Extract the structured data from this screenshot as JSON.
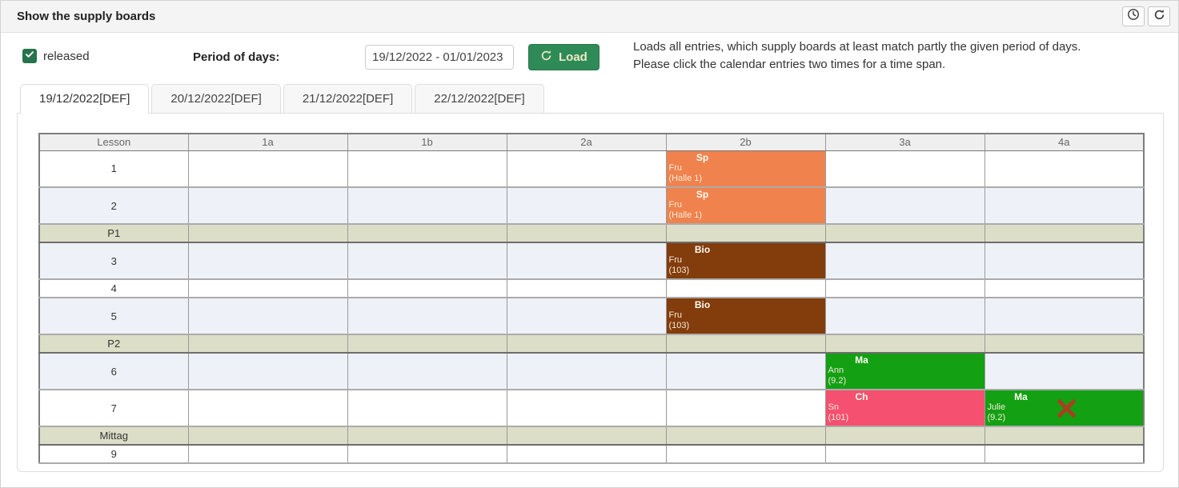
{
  "window": {
    "title": "Show the supply boards"
  },
  "titlebar_icons": [
    "clock-icon",
    "refresh-icon"
  ],
  "controls": {
    "released_label": "released",
    "released_checked": true,
    "period_label": "Period of days:",
    "period_value": "19/12/2022 - 01/01/2023",
    "load_label": "Load",
    "help_line1": "Loads all entries, which supply boards at least match partly the given period of days.",
    "help_line2": "Please click the calendar entries two times for a time span."
  },
  "tabs": [
    {
      "label": "19/12/2022[DEF]",
      "active": true
    },
    {
      "label": "20/12/2022[DEF]",
      "active": false
    },
    {
      "label": "21/12/2022[DEF]",
      "active": false
    },
    {
      "label": "22/12/2022[DEF]",
      "active": false
    }
  ],
  "board": {
    "columns": [
      "Lesson",
      "1a",
      "1b",
      "2a",
      "2b",
      "3a",
      "4a"
    ],
    "rows": [
      {
        "label": "1",
        "kind": "lesson",
        "tall": true,
        "shade": "white",
        "entries": {
          "2b": {
            "subject": "Sp",
            "teacher": "Fru",
            "room": "(Halle 1)",
            "color": "orange",
            "cancelled": false
          }
        }
      },
      {
        "label": "2",
        "kind": "lesson",
        "tall": true,
        "shade": "blue",
        "entries": {
          "2b": {
            "subject": "Sp",
            "teacher": "Fru",
            "room": "(Halle 1)",
            "color": "orange",
            "cancelled": false
          }
        }
      },
      {
        "label": "P1",
        "kind": "band",
        "tall": false,
        "shade": "band",
        "entries": {}
      },
      {
        "label": "3",
        "kind": "lesson",
        "tall": true,
        "shade": "blue",
        "entries": {
          "2b": {
            "subject": "Bio",
            "teacher": "Fru",
            "room": "(103)",
            "color": "brown",
            "cancelled": false
          }
        }
      },
      {
        "label": "4",
        "kind": "lesson",
        "tall": false,
        "shade": "white",
        "entries": {}
      },
      {
        "label": "5",
        "kind": "lesson",
        "tall": true,
        "shade": "blue",
        "entries": {
          "2b": {
            "subject": "Bio",
            "teacher": "Fru",
            "room": "(103)",
            "color": "brown",
            "cancelled": false
          }
        }
      },
      {
        "label": "P2",
        "kind": "band",
        "tall": false,
        "shade": "band",
        "entries": {}
      },
      {
        "label": "6",
        "kind": "lesson",
        "tall": true,
        "shade": "blue",
        "entries": {
          "3a": {
            "subject": "Ma",
            "teacher": "Ann",
            "room": "(9.2)",
            "color": "green",
            "cancelled": false
          }
        }
      },
      {
        "label": "7",
        "kind": "lesson",
        "tall": true,
        "shade": "white",
        "entries": {
          "3a": {
            "subject": "Ch",
            "teacher": "Sn",
            "room": "(101)",
            "color": "pink",
            "cancelled": false
          },
          "4a": {
            "subject": "Ma",
            "teacher": "Julie",
            "room": "(9.2)",
            "color": "green",
            "cancelled": true
          }
        }
      },
      {
        "label": "Mittag",
        "kind": "band",
        "tall": false,
        "shade": "band",
        "entries": {}
      },
      {
        "label": "9",
        "kind": "lesson",
        "tall": false,
        "shade": "white",
        "entries": {}
      }
    ]
  },
  "colors": {
    "entry_orange": "#F0824E",
    "entry_brown": "#833C0C",
    "entry_green": "#13A013",
    "entry_pink": "#F5506F",
    "band_row": "#DDDEC8",
    "alt_row": "#EEF2F8",
    "white_row": "#FFFFFF",
    "cancel_x": "#A8401E",
    "button_green": "#2E8B57",
    "checkbox_green": "#26734C"
  }
}
